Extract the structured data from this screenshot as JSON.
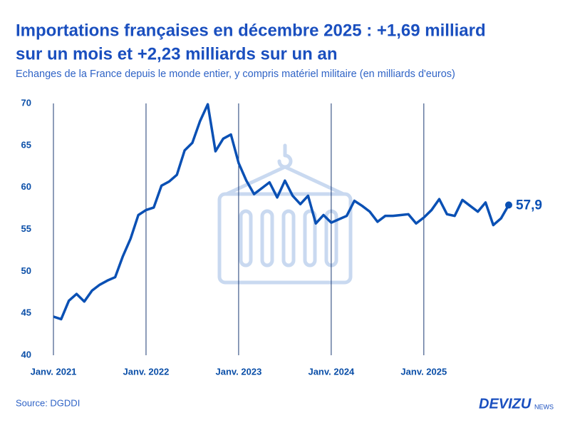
{
  "chart_data": {
    "type": "line",
    "title": [
      "Importations françaises en décembre 2025 : +1,69 milliard",
      "sur un mois et +2,23 milliards sur un an"
    ],
    "subtitle": "Echanges de la France depuis le monde entier, y compris matériel militaire (en milliards d'euros)",
    "source": "Source: DGDDI",
    "brand": {
      "name": "DEVIZU",
      "suffix": "NEWS"
    },
    "categories": [
      "Janv. 2021",
      null,
      null,
      null,
      null,
      null,
      null,
      null,
      null,
      null,
      null,
      null,
      "Janv. 2022",
      null,
      null,
      null,
      null,
      null,
      null,
      null,
      null,
      null,
      null,
      null,
      "Janv. 2023",
      null,
      null,
      null,
      null,
      null,
      null,
      null,
      null,
      null,
      null,
      null,
      "Janv. 2024",
      null,
      null,
      null,
      null,
      null,
      null,
      null,
      null,
      null,
      null,
      null,
      "Janv. 2025",
      null,
      null,
      null,
      null,
      null,
      null,
      null,
      null,
      null,
      null,
      null
    ],
    "series": [
      {
        "color": "#0a50b4",
        "values": [
          44.6,
          44.3,
          46.5,
          47.3,
          46.4,
          47.7,
          48.4,
          48.9,
          49.3,
          51.8,
          53.9,
          56.7,
          57.3,
          57.6,
          60.2,
          60.7,
          61.5,
          64.4,
          65.3,
          67.9,
          69.9,
          64.3,
          65.8,
          66.3,
          62.9,
          60.8,
          59.2,
          59.9,
          60.6,
          58.8,
          60.8,
          59.0,
          58.0,
          59.0,
          55.7,
          56.7,
          55.8,
          56.2,
          56.6,
          58.4,
          57.8,
          57.1,
          55.9,
          56.6,
          56.6,
          56.7,
          56.8,
          55.7,
          56.4,
          57.3,
          58.6,
          56.8,
          56.6,
          58.5,
          57.8,
          57.1,
          58.2,
          55.5,
          56.3,
          57.9
        ],
        "value_labels": [
          null,
          null,
          null,
          null,
          null,
          null,
          null,
          null,
          null,
          null,
          null,
          null,
          null,
          null,
          null,
          null,
          null,
          null,
          null,
          null,
          null,
          null,
          null,
          null,
          null,
          null,
          null,
          null,
          null,
          null,
          null,
          null,
          null,
          null,
          null,
          null,
          null,
          null,
          null,
          null,
          null,
          null,
          null,
          null,
          null,
          null,
          null,
          null,
          null,
          null,
          null,
          null,
          null,
          null,
          null,
          null,
          null,
          null,
          null,
          "57,9"
        ]
      }
    ],
    "ylim": [
      40,
      70
    ],
    "yticks": [
      40,
      45,
      50,
      55,
      60,
      65,
      70
    ]
  }
}
